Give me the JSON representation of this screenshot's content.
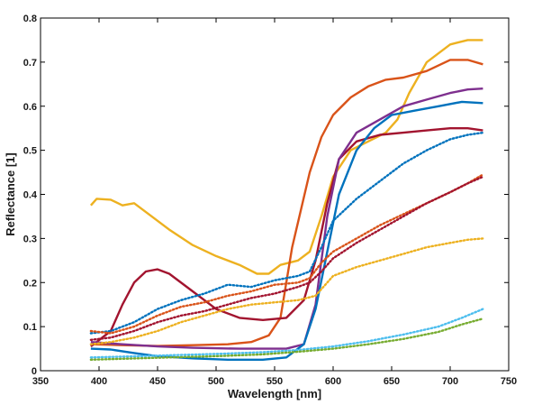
{
  "chart_data": {
    "type": "line",
    "title": "",
    "xlabel": "Wavelength [nm]",
    "ylabel": "Reflectance [1]",
    "xlim": [
      350,
      750
    ],
    "ylim": [
      0,
      0.8
    ],
    "xticks": [
      350,
      400,
      450,
      500,
      550,
      600,
      650,
      700,
      750
    ],
    "yticks": [
      0,
      0.1,
      0.2,
      0.3,
      0.4,
      0.5,
      0.6,
      0.7,
      0.8
    ],
    "grid": false,
    "legend": "none",
    "series": [
      {
        "color": "#EDB120",
        "style": "solid",
        "x": [
          393,
          398,
          410,
          420,
          430,
          440,
          450,
          460,
          480,
          500,
          520,
          535,
          545,
          555,
          570,
          580,
          590,
          600,
          615,
          630,
          645,
          655,
          665,
          680,
          700,
          715,
          728
        ],
        "y": [
          0.375,
          0.39,
          0.388,
          0.375,
          0.38,
          0.36,
          0.34,
          0.32,
          0.285,
          0.26,
          0.24,
          0.22,
          0.22,
          0.24,
          0.25,
          0.27,
          0.35,
          0.44,
          0.5,
          0.52,
          0.54,
          0.57,
          0.63,
          0.7,
          0.74,
          0.75,
          0.75
        ]
      },
      {
        "color": "#D95319",
        "style": "solid",
        "x": [
          393,
          420,
          450,
          480,
          510,
          530,
          545,
          555,
          565,
          580,
          590,
          600,
          615,
          630,
          645,
          660,
          680,
          700,
          715,
          728
        ],
        "y": [
          0.06,
          0.058,
          0.056,
          0.058,
          0.06,
          0.065,
          0.08,
          0.12,
          0.28,
          0.45,
          0.53,
          0.58,
          0.62,
          0.645,
          0.66,
          0.665,
          0.68,
          0.705,
          0.705,
          0.695
        ]
      },
      {
        "color": "#A2142F",
        "style": "solid",
        "x": [
          393,
          410,
          420,
          430,
          440,
          450,
          460,
          480,
          500,
          520,
          540,
          560,
          575,
          585,
          595,
          605,
          620,
          640,
          660,
          680,
          700,
          715,
          728
        ],
        "y": [
          0.055,
          0.09,
          0.15,
          0.2,
          0.225,
          0.23,
          0.22,
          0.18,
          0.14,
          0.12,
          0.115,
          0.12,
          0.16,
          0.25,
          0.38,
          0.48,
          0.52,
          0.535,
          0.54,
          0.545,
          0.55,
          0.55,
          0.545
        ]
      },
      {
        "color": "#7E2F8E",
        "style": "solid",
        "x": [
          393,
          420,
          450,
          480,
          520,
          560,
          575,
          585,
          595,
          605,
          620,
          640,
          660,
          680,
          700,
          715,
          728
        ],
        "y": [
          0.065,
          0.06,
          0.055,
          0.052,
          0.05,
          0.05,
          0.06,
          0.15,
          0.35,
          0.48,
          0.54,
          0.57,
          0.6,
          0.615,
          0.63,
          0.638,
          0.64
        ]
      },
      {
        "color": "#0072BD",
        "style": "solid",
        "x": [
          393,
          410,
          430,
          450,
          480,
          510,
          540,
          560,
          575,
          585,
          595,
          605,
          620,
          635,
          650,
          670,
          690,
          710,
          728
        ],
        "y": [
          0.05,
          0.048,
          0.04,
          0.033,
          0.028,
          0.025,
          0.025,
          0.03,
          0.06,
          0.14,
          0.27,
          0.4,
          0.5,
          0.55,
          0.58,
          0.59,
          0.6,
          0.61,
          0.607
        ]
      },
      {
        "color": "#0072BD",
        "style": "dotted",
        "x": [
          393,
          410,
          430,
          450,
          470,
          490,
          510,
          530,
          550,
          570,
          580,
          590,
          600,
          620,
          640,
          660,
          680,
          700,
          715,
          728
        ],
        "y": [
          0.085,
          0.09,
          0.11,
          0.14,
          0.16,
          0.175,
          0.195,
          0.19,
          0.205,
          0.215,
          0.225,
          0.28,
          0.34,
          0.39,
          0.43,
          0.47,
          0.5,
          0.525,
          0.535,
          0.54
        ]
      },
      {
        "color": "#D95319",
        "style": "dotted",
        "x": [
          393,
          410,
          430,
          450,
          470,
          490,
          510,
          530,
          550,
          570,
          580,
          590,
          600,
          620,
          640,
          660,
          680,
          700,
          715,
          728
        ],
        "y": [
          0.09,
          0.085,
          0.1,
          0.125,
          0.145,
          0.155,
          0.17,
          0.18,
          0.195,
          0.2,
          0.21,
          0.245,
          0.27,
          0.3,
          0.33,
          0.355,
          0.38,
          0.405,
          0.425,
          0.445
        ]
      },
      {
        "color": "#A2142F",
        "style": "dotted",
        "x": [
          393,
          410,
          430,
          450,
          470,
          490,
          510,
          530,
          550,
          570,
          580,
          590,
          600,
          620,
          640,
          660,
          680,
          700,
          715,
          728
        ],
        "y": [
          0.07,
          0.075,
          0.09,
          0.11,
          0.125,
          0.135,
          0.15,
          0.165,
          0.175,
          0.19,
          0.2,
          0.225,
          0.255,
          0.29,
          0.32,
          0.35,
          0.38,
          0.405,
          0.425,
          0.44
        ]
      },
      {
        "color": "#EDB120",
        "style": "dotted",
        "x": [
          393,
          410,
          430,
          450,
          470,
          490,
          510,
          530,
          550,
          570,
          585,
          600,
          620,
          640,
          660,
          680,
          700,
          715,
          728
        ],
        "y": [
          0.06,
          0.065,
          0.075,
          0.09,
          0.11,
          0.125,
          0.14,
          0.15,
          0.155,
          0.16,
          0.17,
          0.215,
          0.235,
          0.25,
          0.265,
          0.28,
          0.29,
          0.297,
          0.3
        ]
      },
      {
        "color": "#4DBEEE",
        "style": "dotted",
        "x": [
          393,
          420,
          460,
          500,
          540,
          570,
          600,
          630,
          660,
          690,
          710,
          728
        ],
        "y": [
          0.03,
          0.032,
          0.035,
          0.038,
          0.042,
          0.047,
          0.055,
          0.067,
          0.082,
          0.1,
          0.12,
          0.14
        ]
      },
      {
        "color": "#77AC30",
        "style": "dotted",
        "x": [
          393,
          420,
          460,
          500,
          540,
          570,
          600,
          630,
          660,
          690,
          710,
          728
        ],
        "y": [
          0.025,
          0.027,
          0.03,
          0.033,
          0.037,
          0.043,
          0.05,
          0.06,
          0.072,
          0.088,
          0.105,
          0.118
        ]
      }
    ]
  }
}
